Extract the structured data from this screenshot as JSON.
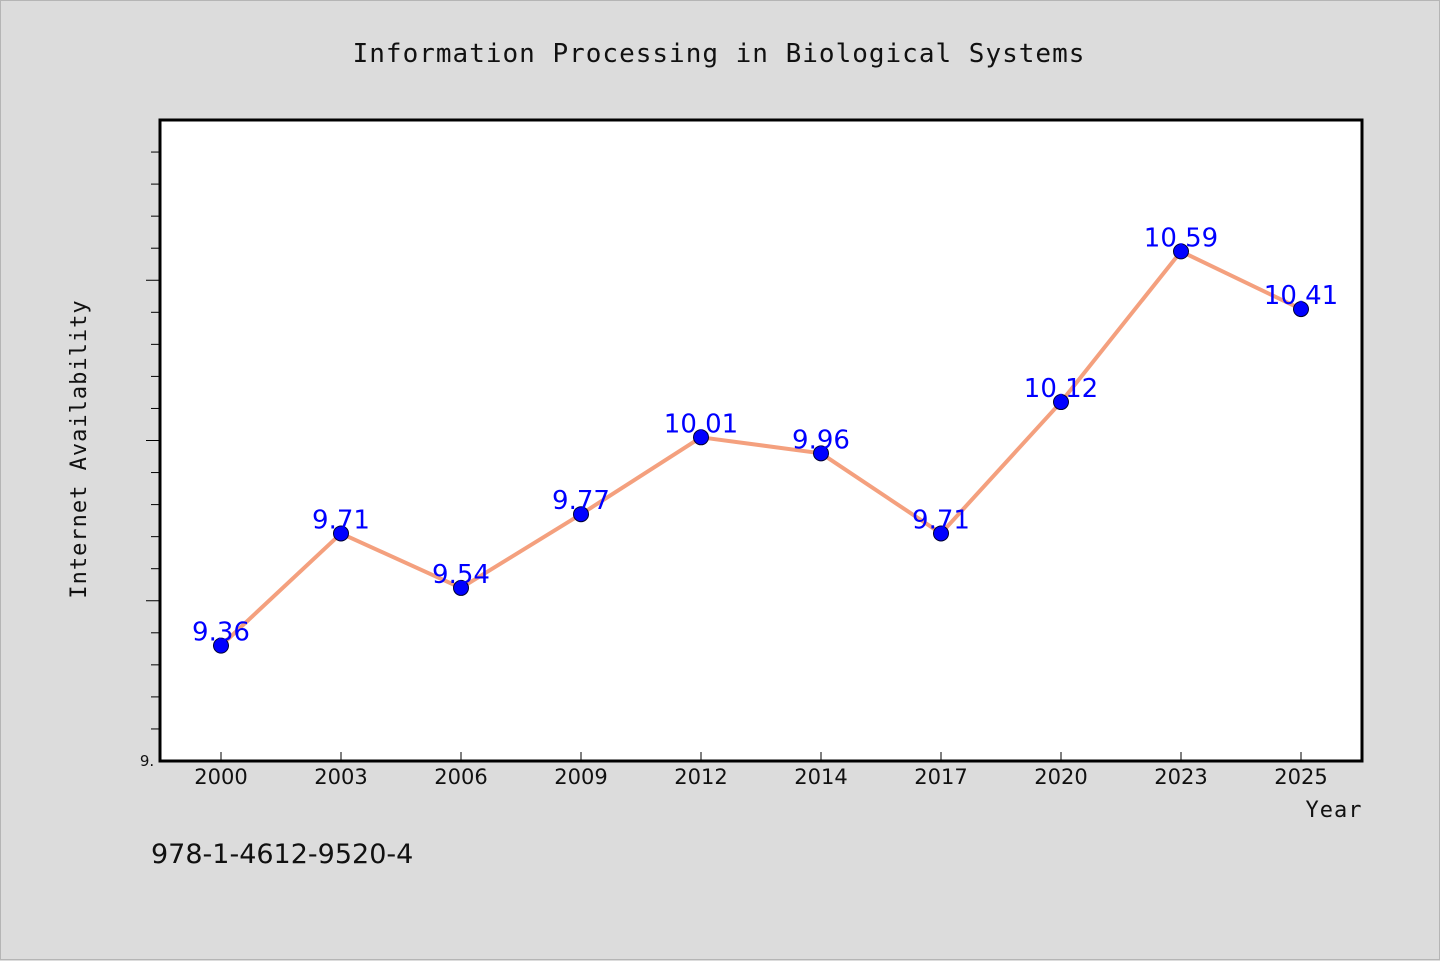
{
  "chart_data": {
    "type": "line",
    "title": "Information Processing in Biological Systems",
    "xlabel": "Year",
    "ylabel": "Internet Availability",
    "categories": [
      "2000",
      "2003",
      "2006",
      "2009",
      "2012",
      "2014",
      "2017",
      "2020",
      "2023",
      "2025"
    ],
    "series": [
      {
        "values": [
          9.36,
          9.71,
          9.54,
          9.77,
          10.01,
          9.96,
          9.71,
          10.12,
          10.59,
          10.41
        ]
      }
    ],
    "ylim": [
      9.0,
      11.0
    ],
    "y_tick_label": "9.",
    "grid": false,
    "legend": "none",
    "line_color": "#f4a07e",
    "marker_color": "#0000ff",
    "label_color": "#0000ff"
  },
  "footnote": "978-1-4612-9520-4"
}
